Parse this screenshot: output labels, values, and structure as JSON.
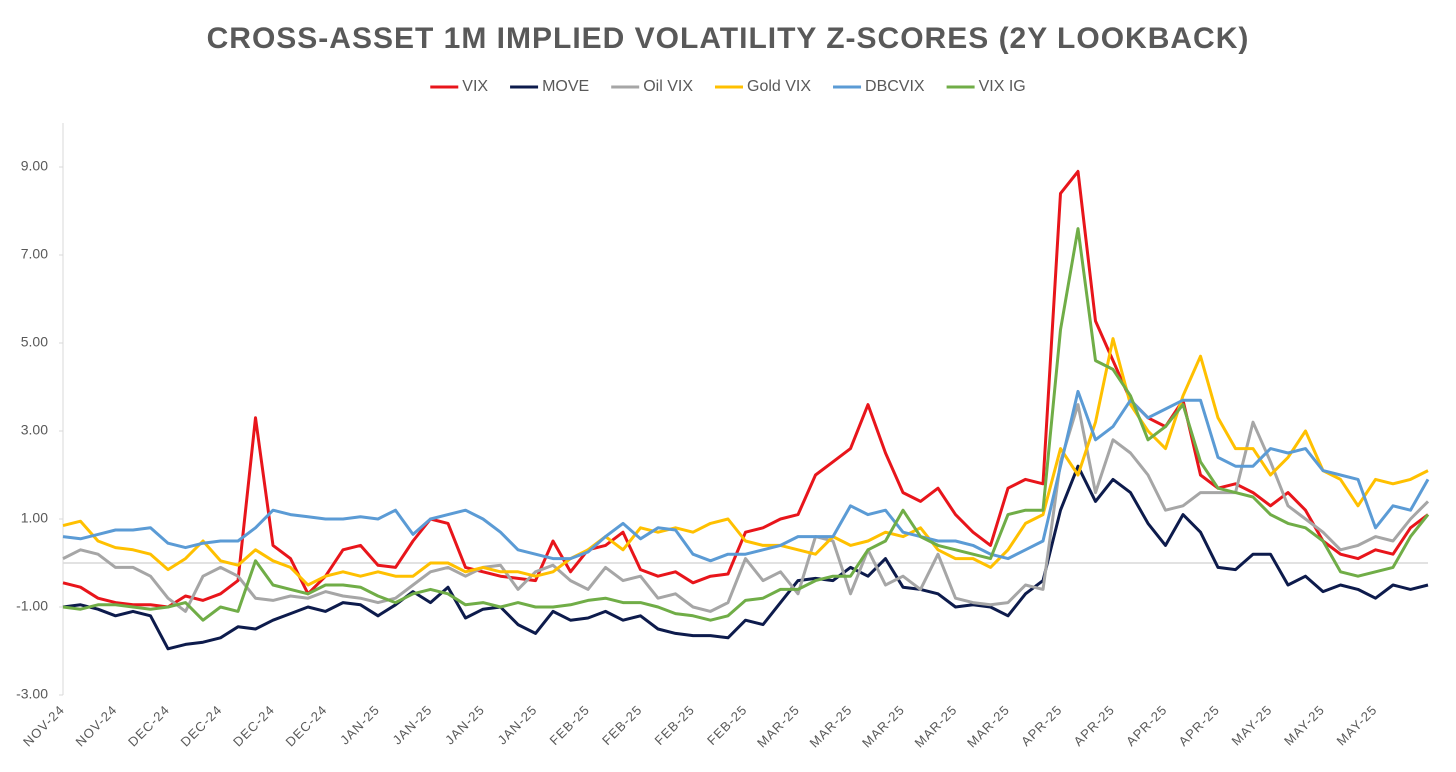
{
  "chart_data": {
    "type": "line",
    "title": "CROSS-ASSET 1M IMPLIED VOLATILITY Z-SCORES (2Y LOOKBACK)",
    "categories": [
      "NOV-24",
      null,
      null,
      "NOV-24",
      null,
      null,
      "DEC-24",
      null,
      null,
      "DEC-24",
      null,
      null,
      "DEC-24",
      null,
      null,
      "DEC-24",
      null,
      null,
      "JAN-25",
      null,
      null,
      "JAN-25",
      null,
      null,
      "JAN-25",
      null,
      null,
      "JAN-25",
      null,
      null,
      "FEB-25",
      null,
      null,
      "FEB-25",
      null,
      null,
      "FEB-25",
      null,
      null,
      "FEB-25",
      null,
      null,
      "MAR-25",
      null,
      null,
      "MAR-25",
      null,
      null,
      "MAR-25",
      null,
      null,
      "MAR-25",
      null,
      null,
      "MAR-25",
      null,
      null,
      "APR-25",
      null,
      null,
      "APR-25",
      null,
      null,
      "APR-25",
      null,
      null,
      "APR-25",
      null,
      null,
      "MAY-25",
      null,
      null,
      "MAY-25",
      null,
      null,
      "MAY-25",
      null,
      null,
      null
    ],
    "series": [
      {
        "name": "VIX",
        "color": "#e8151b",
        "values": [
          -0.45,
          -0.55,
          -0.8,
          -0.9,
          -0.95,
          -0.95,
          -1.0,
          -0.75,
          -0.85,
          -0.7,
          -0.4,
          3.3,
          0.4,
          0.1,
          -0.7,
          -0.3,
          0.3,
          0.4,
          -0.05,
          -0.1,
          0.5,
          1.0,
          0.9,
          -0.1,
          -0.2,
          -0.3,
          -0.35,
          -0.4,
          0.5,
          -0.2,
          0.3,
          0.4,
          0.7,
          -0.15,
          -0.3,
          -0.2,
          -0.45,
          -0.3,
          -0.25,
          0.7,
          0.8,
          1.0,
          1.1,
          2.0,
          2.3,
          2.6,
          3.6,
          2.5,
          1.6,
          1.4,
          1.7,
          1.1,
          0.7,
          0.4,
          1.7,
          1.9,
          1.8,
          8.4,
          8.9,
          5.5,
          4.6,
          3.7,
          3.3,
          3.1,
          3.7,
          2.0,
          1.7,
          1.8,
          1.6,
          1.3,
          1.6,
          1.2,
          0.5,
          0.2,
          0.1,
          0.3,
          0.2,
          0.8,
          1.1
        ]
      },
      {
        "name": "MOVE",
        "color": "#0d1b4c",
        "values": [
          -1.0,
          -0.95,
          -1.05,
          -1.2,
          -1.1,
          -1.2,
          -1.95,
          -1.85,
          -1.8,
          -1.7,
          -1.45,
          -1.5,
          -1.3,
          -1.15,
          -1.0,
          -1.1,
          -0.9,
          -0.95,
          -1.2,
          -0.95,
          -0.65,
          -0.9,
          -0.55,
          -1.25,
          -1.05,
          -1.0,
          -1.4,
          -1.6,
          -1.1,
          -1.3,
          -1.25,
          -1.1,
          -1.3,
          -1.2,
          -1.5,
          -1.6,
          -1.65,
          -1.65,
          -1.7,
          -1.3,
          -1.4,
          -0.9,
          -0.4,
          -0.35,
          -0.4,
          -0.1,
          -0.3,
          0.1,
          -0.55,
          -0.6,
          -0.7,
          -1.0,
          -0.95,
          -1.0,
          -1.2,
          -0.7,
          -0.4,
          1.2,
          2.2,
          1.4,
          1.9,
          1.6,
          0.9,
          0.4,
          1.1,
          0.7,
          -0.1,
          -0.15,
          0.2,
          0.2,
          -0.5,
          -0.3,
          -0.65,
          -0.5,
          -0.6,
          -0.8,
          -0.5,
          -0.6,
          -0.5
        ]
      },
      {
        "name": "Oil VIX",
        "color": "#a6a6a6",
        "values": [
          0.1,
          0.3,
          0.2,
          -0.1,
          -0.1,
          -0.3,
          -0.8,
          -1.1,
          -0.3,
          -0.1,
          -0.3,
          -0.8,
          -0.85,
          -0.75,
          -0.8,
          -0.65,
          -0.75,
          -0.8,
          -0.9,
          -0.8,
          -0.5,
          -0.2,
          -0.1,
          -0.3,
          -0.1,
          -0.05,
          -0.6,
          -0.2,
          -0.05,
          -0.4,
          -0.6,
          -0.1,
          -0.4,
          -0.3,
          -0.8,
          -0.7,
          -1.0,
          -1.1,
          -0.9,
          0.1,
          -0.4,
          -0.2,
          -0.7,
          0.6,
          0.5,
          -0.7,
          0.3,
          -0.5,
          -0.3,
          -0.6,
          0.2,
          -0.8,
          -0.9,
          -0.95,
          -0.9,
          -0.5,
          -0.6,
          2.3,
          3.6,
          1.6,
          2.8,
          2.5,
          2.0,
          1.2,
          1.3,
          1.6,
          1.6,
          1.6,
          3.2,
          2.3,
          1.3,
          1.0,
          0.7,
          0.3,
          0.4,
          0.6,
          0.5,
          1.0,
          1.4
        ]
      },
      {
        "name": "Gold VIX",
        "color": "#ffc000",
        "values": [
          0.85,
          0.95,
          0.5,
          0.35,
          0.3,
          0.2,
          -0.15,
          0.1,
          0.5,
          0.05,
          -0.05,
          0.3,
          0.05,
          -0.1,
          -0.5,
          -0.3,
          -0.2,
          -0.3,
          -0.2,
          -0.3,
          -0.3,
          0.0,
          0.0,
          -0.2,
          -0.1,
          -0.2,
          -0.2,
          -0.3,
          -0.2,
          0.1,
          0.3,
          0.6,
          0.3,
          0.8,
          0.7,
          0.8,
          0.7,
          0.9,
          1.0,
          0.5,
          0.4,
          0.4,
          0.3,
          0.2,
          0.6,
          0.4,
          0.5,
          0.7,
          0.6,
          0.8,
          0.3,
          0.1,
          0.1,
          -0.1,
          0.3,
          0.9,
          1.1,
          2.6,
          2.0,
          3.2,
          5.1,
          3.6,
          3.0,
          2.6,
          3.8,
          4.7,
          3.3,
          2.6,
          2.6,
          2.0,
          2.4,
          3.0,
          2.1,
          1.9,
          1.3,
          1.9,
          1.8,
          1.9,
          2.1
        ]
      },
      {
        "name": "DBCVIX",
        "color": "#5b9bd5",
        "values": [
          0.6,
          0.55,
          0.65,
          0.75,
          0.75,
          0.8,
          0.45,
          0.35,
          0.45,
          0.5,
          0.5,
          0.8,
          1.2,
          1.1,
          1.05,
          1.0,
          1.0,
          1.05,
          1.0,
          1.2,
          0.65,
          1.0,
          1.1,
          1.2,
          1.0,
          0.7,
          0.3,
          0.2,
          0.1,
          0.1,
          0.25,
          0.6,
          0.9,
          0.55,
          0.8,
          0.75,
          0.2,
          0.05,
          0.2,
          0.2,
          0.3,
          0.4,
          0.6,
          0.6,
          0.6,
          1.3,
          1.1,
          1.2,
          0.7,
          0.6,
          0.5,
          0.5,
          0.4,
          0.2,
          0.1,
          0.3,
          0.5,
          2.2,
          3.9,
          2.8,
          3.1,
          3.7,
          3.3,
          3.5,
          3.7,
          3.7,
          2.4,
          2.2,
          2.2,
          2.6,
          2.5,
          2.6,
          2.1,
          2.0,
          1.9,
          0.8,
          1.3,
          1.2,
          1.9
        ]
      },
      {
        "name": "VIX IG",
        "color": "#70ad47",
        "values": [
          -1.0,
          -1.05,
          -0.95,
          -0.95,
          -1.0,
          -1.05,
          -1.0,
          -0.9,
          -1.3,
          -1.0,
          -1.1,
          0.05,
          -0.5,
          -0.6,
          -0.7,
          -0.5,
          -0.5,
          -0.55,
          -0.75,
          -0.9,
          -0.7,
          -0.6,
          -0.7,
          -0.95,
          -0.9,
          -1.0,
          -0.9,
          -1.0,
          -1.0,
          -0.95,
          -0.85,
          -0.8,
          -0.9,
          -0.9,
          -1.0,
          -1.15,
          -1.2,
          -1.3,
          -1.2,
          -0.85,
          -0.8,
          -0.6,
          -0.6,
          -0.4,
          -0.3,
          -0.3,
          0.3,
          0.5,
          1.2,
          0.6,
          0.4,
          0.3,
          0.2,
          0.1,
          1.1,
          1.2,
          1.2,
          5.3,
          7.6,
          4.6,
          4.4,
          3.8,
          2.8,
          3.1,
          3.6,
          2.3,
          1.7,
          1.6,
          1.5,
          1.1,
          0.9,
          0.8,
          0.5,
          -0.2,
          -0.3,
          -0.2,
          -0.1,
          0.6,
          1.1
        ]
      }
    ],
    "ylim": [
      -3,
      10
    ],
    "yticks": [
      {
        "value": -3,
        "label": "-3.00"
      },
      {
        "value": -1,
        "label": "-1.00"
      },
      {
        "value": 1,
        "label": "1.00"
      },
      {
        "value": 3,
        "label": "3.00"
      },
      {
        "value": 5,
        "label": "5.00"
      },
      {
        "value": 7,
        "label": "7.00"
      },
      {
        "value": 9,
        "label": "9.00"
      }
    ]
  }
}
